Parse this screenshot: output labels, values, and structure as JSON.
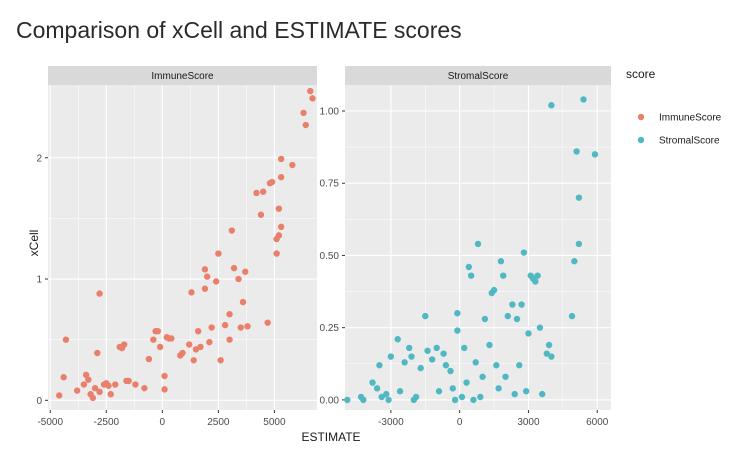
{
  "chart_data": {
    "type": "scatter",
    "title": "Comparison of xCell and ESTIMATE scores",
    "xlabel": "ESTIMATE",
    "ylabel": "xCell",
    "legend": {
      "title": "score",
      "position": "right"
    },
    "colors": {
      "ImmuneScore": "#e8806c",
      "StromalScore": "#4fb8c2",
      "panel_bg": "#ebebeb",
      "strip_bg": "#d9d9d9",
      "grid": "#ffffff"
    },
    "grid": true,
    "panels": [
      {
        "name": "ImmuneScore",
        "xlim": [
          -5100,
          6900
        ],
        "ylim": [
          -0.08,
          2.6
        ],
        "xticks": [
          -5000,
          -2500,
          0,
          2500,
          5000
        ],
        "xtick_labels": [
          "-5000",
          "-2500",
          "0",
          "2500",
          "5000"
        ],
        "yticks": [
          0,
          1,
          2
        ],
        "ytick_labels": [
          "0",
          "1",
          "2"
        ],
        "points": [
          [
            -4600,
            0.04
          ],
          [
            -4400,
            0.19
          ],
          [
            -4300,
            0.5
          ],
          [
            -3800,
            0.08
          ],
          [
            -3500,
            0.13
          ],
          [
            -3400,
            0.21
          ],
          [
            -3300,
            0.17
          ],
          [
            -3200,
            0.05
          ],
          [
            -3100,
            0.02
          ],
          [
            -3000,
            0.1
          ],
          [
            -2900,
            0.39
          ],
          [
            -2800,
            0.88
          ],
          [
            -2800,
            0.07
          ],
          [
            -2600,
            0.13
          ],
          [
            -2500,
            0.14
          ],
          [
            -2400,
            0.12
          ],
          [
            -2300,
            0.05
          ],
          [
            -2100,
            0.13
          ],
          [
            -1900,
            0.44
          ],
          [
            -1800,
            0.43
          ],
          [
            -1700,
            0.46
          ],
          [
            -1600,
            0.16
          ],
          [
            -1500,
            0.16
          ],
          [
            -1200,
            0.13
          ],
          [
            -800,
            0.1
          ],
          [
            -600,
            0.34
          ],
          [
            -400,
            0.5
          ],
          [
            -300,
            0.57
          ],
          [
            -200,
            0.57
          ],
          [
            -100,
            0.44
          ],
          [
            100,
            0.2
          ],
          [
            100,
            0.09
          ],
          [
            200,
            0.52
          ],
          [
            300,
            0.51
          ],
          [
            400,
            0.51
          ],
          [
            800,
            0.37
          ],
          [
            900,
            0.39
          ],
          [
            1200,
            0.46
          ],
          [
            1300,
            0.89
          ],
          [
            1400,
            0.33
          ],
          [
            1500,
            0.42
          ],
          [
            1600,
            0.57
          ],
          [
            1700,
            0.44
          ],
          [
            1900,
            0.92
          ],
          [
            1900,
            1.08
          ],
          [
            2000,
            1.02
          ],
          [
            2100,
            0.48
          ],
          [
            2200,
            0.6
          ],
          [
            2400,
            0.98
          ],
          [
            2500,
            1.21
          ],
          [
            2600,
            0.33
          ],
          [
            2800,
            0.62
          ],
          [
            3000,
            0.71
          ],
          [
            3000,
            0.5
          ],
          [
            3100,
            1.4
          ],
          [
            3200,
            1.09
          ],
          [
            3400,
            1.0
          ],
          [
            3500,
            0.6
          ],
          [
            3600,
            0.81
          ],
          [
            3700,
            1.06
          ],
          [
            3800,
            0.61
          ],
          [
            4200,
            1.71
          ],
          [
            4400,
            1.53
          ],
          [
            4500,
            1.72
          ],
          [
            4700,
            0.64
          ],
          [
            4800,
            1.79
          ],
          [
            4900,
            1.8
          ],
          [
            5100,
            1.21
          ],
          [
            5100,
            1.33
          ],
          [
            5200,
            1.36
          ],
          [
            5200,
            1.58
          ],
          [
            5300,
            1.43
          ],
          [
            5300,
            1.84
          ],
          [
            5300,
            1.99
          ],
          [
            5800,
            1.94
          ],
          [
            6300,
            2.37
          ],
          [
            6400,
            2.27
          ],
          [
            6600,
            2.55
          ],
          [
            6700,
            2.49
          ]
        ]
      },
      {
        "name": "StromalScore",
        "xlim": [
          -5000,
          6600
        ],
        "ylim": [
          -0.035,
          1.09
        ],
        "xticks": [
          -3000,
          0,
          3000,
          6000
        ],
        "xtick_labels": [
          "-3000",
          "0",
          "3000",
          "6000"
        ],
        "yticks": [
          0,
          0.25,
          0.5,
          0.75,
          1.0
        ],
        "ytick_labels": [
          "0.00",
          "0.25",
          "0.50",
          "0.75",
          "1.00"
        ],
        "points": [
          [
            -4900,
            0.0
          ],
          [
            -4300,
            0.01
          ],
          [
            -4200,
            0.0
          ],
          [
            -3800,
            0.06
          ],
          [
            -3600,
            0.04
          ],
          [
            -3500,
            0.12
          ],
          [
            -3400,
            0.01
          ],
          [
            -3200,
            0.02
          ],
          [
            -3100,
            0.0
          ],
          [
            -3000,
            0.15
          ],
          [
            -2700,
            0.21
          ],
          [
            -2600,
            0.03
          ],
          [
            -2400,
            0.13
          ],
          [
            -2200,
            0.18
          ],
          [
            -2100,
            0.15
          ],
          [
            -2000,
            0.0
          ],
          [
            -1900,
            0.01
          ],
          [
            -1700,
            0.11
          ],
          [
            -1500,
            0.29
          ],
          [
            -1400,
            0.17
          ],
          [
            -1200,
            0.14
          ],
          [
            -1000,
            0.18
          ],
          [
            -900,
            0.03
          ],
          [
            -700,
            0.16
          ],
          [
            -600,
            0.12
          ],
          [
            -400,
            0.1
          ],
          [
            -300,
            0.04
          ],
          [
            -200,
            0.0
          ],
          [
            -100,
            0.24
          ],
          [
            -100,
            0.3
          ],
          [
            100,
            0.01
          ],
          [
            200,
            0.18
          ],
          [
            300,
            0.06
          ],
          [
            400,
            0.46
          ],
          [
            500,
            0.43
          ],
          [
            600,
            0.0
          ],
          [
            700,
            0.13
          ],
          [
            800,
            0.54
          ],
          [
            900,
            0.01
          ],
          [
            1000,
            0.08
          ],
          [
            1100,
            0.28
          ],
          [
            1300,
            0.19
          ],
          [
            1400,
            0.37
          ],
          [
            1500,
            0.38
          ],
          [
            1600,
            0.12
          ],
          [
            1700,
            0.04
          ],
          [
            1800,
            0.48
          ],
          [
            1900,
            0.43
          ],
          [
            2000,
            0.08
          ],
          [
            2100,
            0.29
          ],
          [
            2300,
            0.33
          ],
          [
            2400,
            0.02
          ],
          [
            2500,
            0.28
          ],
          [
            2600,
            0.12
          ],
          [
            2700,
            0.33
          ],
          [
            2800,
            0.51
          ],
          [
            2900,
            0.03
          ],
          [
            3000,
            0.23
          ],
          [
            3100,
            0.43
          ],
          [
            3200,
            0.42
          ],
          [
            3300,
            0.41
          ],
          [
            3400,
            0.43
          ],
          [
            3500,
            0.25
          ],
          [
            3600,
            0.02
          ],
          [
            3800,
            0.16
          ],
          [
            3900,
            0.19
          ],
          [
            4000,
            0.15
          ],
          [
            4000,
            1.02
          ],
          [
            4900,
            0.29
          ],
          [
            5000,
            0.48
          ],
          [
            5100,
            0.86
          ],
          [
            5200,
            0.54
          ],
          [
            5200,
            0.7
          ],
          [
            5400,
            1.04
          ],
          [
            5900,
            0.85
          ]
        ]
      }
    ]
  }
}
